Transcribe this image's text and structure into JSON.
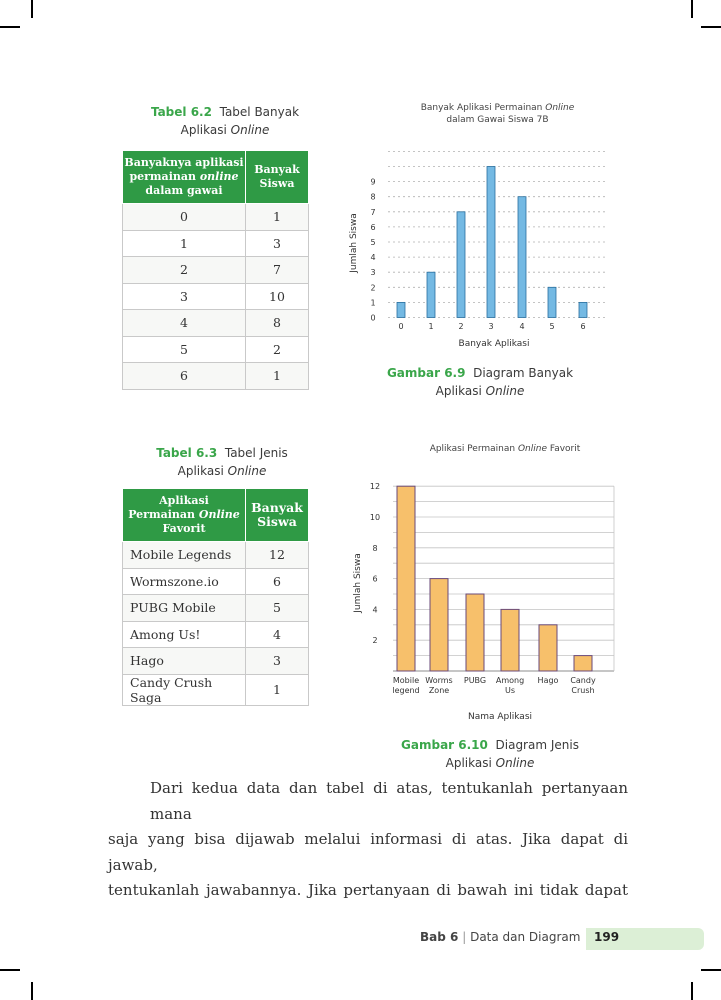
{
  "table1": {
    "label": "Tabel 6.2",
    "title_line1": "Tabel Banyak",
    "title_line2_text": "Aplikasi",
    "title_line2_italic": "Online",
    "header1_line1": "Banyaknya aplikasi",
    "header1_line2_pre": "permainan",
    "header1_line2_italic": "online",
    "header1_line3": "dalam gawai",
    "header2_line1": "Banyak",
    "header2_line2": "Siswa",
    "rows": [
      [
        "0",
        "1"
      ],
      [
        "1",
        "3"
      ],
      [
        "2",
        "7"
      ],
      [
        "3",
        "10"
      ],
      [
        "4",
        "8"
      ],
      [
        "5",
        "2"
      ],
      [
        "6",
        "1"
      ]
    ]
  },
  "table2": {
    "label": "Tabel 6.3",
    "title_line1": "Tabel Jenis",
    "title_line2_text": "Aplikasi",
    "title_line2_italic": "Online",
    "header1_line1": "Aplikasi",
    "header1_line2_pre": "Permainan",
    "header1_line2_italic": "Online",
    "header1_line3": "Favorit",
    "header2_line1": "Banyak",
    "header2_line2": "Siswa",
    "rows": [
      [
        "Mobile Legends",
        "12"
      ],
      [
        "Wormszone.io",
        "6"
      ],
      [
        "PUBG Mobile",
        "5"
      ],
      [
        "Among Us!",
        "4"
      ],
      [
        "Hago",
        "3"
      ],
      [
        "Candy Crush Saga",
        "1"
      ]
    ]
  },
  "figure1": {
    "label": "Gambar 6.9",
    "caption_line1": "Diagram Banyak",
    "caption_line2_text": "Aplikasi",
    "caption_line2_italic": "Online"
  },
  "figure2": {
    "label": "Gambar 6.10",
    "caption_line1": "Diagram Jenis",
    "caption_line2_text": "Aplikasi",
    "caption_line2_italic": "Online"
  },
  "chart_data": [
    {
      "type": "bar",
      "title_line1_pre": "Banyak Aplikasi Permainan",
      "title_line1_italic": "Online",
      "title_line2": "dalam Gawai Siswa 7B",
      "xlabel": "Banyak Aplikasi",
      "ylabel": "Jumlah Siswa",
      "categories": [
        "0",
        "1",
        "2",
        "3",
        "4",
        "5",
        "6"
      ],
      "values": [
        1,
        3,
        7,
        10,
        8,
        2,
        1
      ],
      "yticks": [
        0,
        1,
        2,
        3,
        4,
        5,
        6,
        7,
        8,
        9
      ],
      "ylim": [
        0,
        11
      ],
      "grid": "dashed",
      "bar_color": "#74b9e3",
      "bar_stroke": "#2a6f9e"
    },
    {
      "type": "bar",
      "title_pre": "Aplikasi Permainan",
      "title_italic": "Online",
      "title_post": "Favorit",
      "xlabel": "Nama Aplikasi",
      "ylabel": "Jumlah Siswa",
      "categories": [
        [
          "Mobile",
          "legend"
        ],
        [
          "Worms",
          "Zone"
        ],
        [
          "PUBG"
        ],
        [
          "Among",
          "Us"
        ],
        [
          "Hago"
        ],
        [
          "Candy",
          "Crush"
        ]
      ],
      "values": [
        12,
        6,
        5,
        4,
        3,
        1
      ],
      "yticks": [
        2,
        4,
        6,
        8,
        10,
        12
      ],
      "ylim": [
        0,
        12
      ],
      "grid": "solid",
      "bar_color": "#f7c06b",
      "bar_stroke": "#6a4a7a"
    }
  ],
  "paragraph": {
    "line1": "Dari kedua data dan tabel di atas, tentukanlah pertanyaan mana",
    "line2": "saja yang bisa dijawab melalui informasi di atas. Jika dapat di jawab,",
    "line3": "tentukanlah jawabannya. Jika pertanyaan di bawah ini tidak dapat"
  },
  "footer": {
    "chapter": "Bab 6",
    "separator": "|",
    "title": "Data dan Diagram",
    "page": "199"
  }
}
